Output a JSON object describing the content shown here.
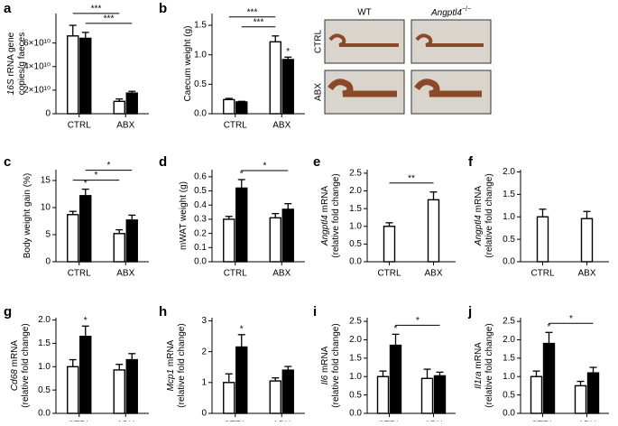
{
  "chart_data": [
    {
      "type": "bar",
      "panel": "a",
      "ylabel": [
        [
          {
            "t": "16S",
            "i": true
          },
          {
            "t": " rRNA gene"
          }
        ],
        [
          {
            "t": "copies/g faeces"
          }
        ]
      ],
      "categories": [
        "CTRL",
        "ABX"
      ],
      "series": [
        {
          "color": "#ffffff",
          "values": [
            66000000000,
            10500000000
          ],
          "errors": [
            9000000000,
            2000000000
          ]
        },
        {
          "color": "#000000",
          "values": [
            64000000000,
            17500000000
          ],
          "errors": [
            5000000000,
            1500000000
          ]
        }
      ],
      "ylim": [
        0,
        85000000000
      ],
      "yticks": [
        0,
        {
          "value": 20000000000,
          "label": "2×10¹⁰"
        },
        {
          "value": 40000000000,
          "label": "4×10¹⁰"
        },
        {
          "value": 60000000000,
          "label": "6×10¹⁰"
        }
      ],
      "annotations": [
        {
          "text": "***",
          "from": [
            1,
            0
          ],
          "to": [
            1,
            1
          ]
        },
        {
          "text": "***",
          "from": [
            0,
            0
          ],
          "to": [
            0,
            1
          ]
        }
      ]
    },
    {
      "type": "bar",
      "panel": "b",
      "ylabel": [
        [
          {
            "t": "Caecum weight (g)"
          }
        ]
      ],
      "categories": [
        "CTRL",
        "ABX"
      ],
      "series": [
        {
          "color": "#ffffff",
          "values": [
            0.24,
            1.22
          ],
          "errors": [
            0.02,
            0.1
          ]
        },
        {
          "color": "#000000",
          "values": [
            0.2,
            0.92
          ],
          "errors": [
            0.01,
            0.04
          ]
        }
      ],
      "ylim": [
        0,
        1.7
      ],
      "yticks": [
        {
          "value": 0,
          "label": "0.0"
        },
        0.5,
        {
          "value": 1,
          "label": "1.0"
        },
        1.5
      ],
      "annotations": [
        {
          "text": "*",
          "at": [
            1,
            1
          ]
        },
        {
          "text": "***",
          "from": [
            1,
            0
          ],
          "to": [
            0,
            1
          ]
        },
        {
          "text": "***",
          "from": [
            0,
            0
          ],
          "to": [
            0,
            1
          ]
        }
      ]
    },
    {
      "type": "bar",
      "panel": "c",
      "ylabel": [
        [
          {
            "t": "Body weight gain (%)"
          }
        ]
      ],
      "categories": [
        "CTRL",
        "ABX"
      ],
      "series": [
        {
          "color": "#ffffff",
          "values": [
            8.7,
            5.2
          ],
          "errors": [
            0.6,
            0.7
          ]
        },
        {
          "color": "#000000",
          "values": [
            12.2,
            7.7
          ],
          "errors": [
            1.2,
            0.9
          ]
        }
      ],
      "ylim": [
        0,
        17
      ],
      "yticks": [
        0,
        5,
        10,
        15
      ],
      "annotations": [
        {
          "text": "*",
          "at": [
            1,
            0
          ]
        },
        {
          "text": "*",
          "from": [
            0,
            0
          ],
          "to": [
            0,
            1
          ]
        },
        {
          "text": "*",
          "from": [
            1,
            0
          ],
          "to": [
            1,
            1
          ]
        }
      ]
    },
    {
      "type": "bar",
      "panel": "d",
      "ylabel": [
        [
          {
            "t": "mWAT weight (g)"
          }
        ]
      ],
      "categories": [
        "CTRL",
        "ABX"
      ],
      "series": [
        {
          "color": "#ffffff",
          "values": [
            0.3,
            0.31
          ],
          "errors": [
            0.02,
            0.03
          ]
        },
        {
          "color": "#000000",
          "values": [
            0.52,
            0.37
          ],
          "errors": [
            0.06,
            0.04
          ]
        }
      ],
      "ylim": [
        0,
        0.65
      ],
      "yticks": [
        {
          "value": 0,
          "label": "0.0"
        },
        0.1,
        0.2,
        0.3,
        0.4,
        0.5,
        0.6
      ],
      "annotations": [
        {
          "text": "*",
          "at": [
            1,
            0
          ]
        },
        {
          "text": "*",
          "from": [
            1,
            0
          ],
          "to": [
            1,
            1
          ]
        }
      ]
    },
    {
      "type": "bar",
      "panel": "e",
      "ylabel": [
        [
          {
            "t": "Angptl4",
            "i": true
          },
          {
            "t": " mRNA"
          }
        ],
        [
          {
            "t": "(relative fold change)"
          }
        ]
      ],
      "categories": [
        "CTRL",
        "ABX"
      ],
      "series": [
        {
          "color": "#ffffff",
          "values": [
            1.0,
            1.75
          ],
          "errors": [
            0.1,
            0.22
          ]
        }
      ],
      "ylim": [
        0,
        2.6
      ],
      "yticks": [
        {
          "value": 0,
          "label": "0.0"
        },
        0.5,
        {
          "value": 1,
          "label": "1.0"
        },
        1.5,
        {
          "value": 2,
          "label": "2.0"
        },
        2.5
      ],
      "annotations": [
        {
          "text": "**",
          "from": [
            0,
            0
          ],
          "to": [
            0,
            1
          ]
        }
      ]
    },
    {
      "type": "bar",
      "panel": "f",
      "ylabel": [
        [
          {
            "t": "Angptl4",
            "i": true
          },
          {
            "t": " mRNA"
          }
        ],
        [
          {
            "t": "(relative fold change)"
          }
        ]
      ],
      "categories": [
        "CTRL",
        "ABX"
      ],
      "series": [
        {
          "color": "#ffffff",
          "values": [
            1.0,
            0.96
          ],
          "errors": [
            0.17,
            0.16
          ]
        }
      ],
      "ylim": [
        0,
        2.05
      ],
      "yticks": [
        {
          "value": 0,
          "label": "0.0"
        },
        0.5,
        {
          "value": 1,
          "label": "1.0"
        },
        1.5,
        {
          "value": 2,
          "label": "2.0"
        }
      ],
      "annotations": []
    },
    {
      "type": "bar",
      "panel": "g",
      "ylabel": [
        [
          {
            "t": "Cd68",
            "i": true
          },
          {
            "t": " mRNA"
          }
        ],
        [
          {
            "t": "(relative fold change)"
          }
        ]
      ],
      "categories": [
        "CTRL",
        "ABX"
      ],
      "series": [
        {
          "color": "#ffffff",
          "values": [
            1.0,
            0.93
          ],
          "errors": [
            0.15,
            0.12
          ]
        },
        {
          "color": "#000000",
          "values": [
            1.65,
            1.15
          ],
          "errors": [
            0.22,
            0.13
          ]
        }
      ],
      "ylim": [
        0,
        2.05
      ],
      "yticks": [
        {
          "value": 0,
          "label": "0.0"
        },
        0.5,
        {
          "value": 1,
          "label": "1.0"
        },
        1.5,
        {
          "value": 2,
          "label": "2.0"
        }
      ],
      "annotations": [
        {
          "text": "*",
          "at": [
            1,
            0
          ]
        }
      ]
    },
    {
      "type": "bar",
      "panel": "h",
      "ylabel": [
        [
          {
            "t": "Mcp1",
            "i": true
          },
          {
            "t": " mRNA"
          }
        ],
        [
          {
            "t": "(relative fold change)"
          }
        ]
      ],
      "categories": [
        "CTRL",
        "ABX"
      ],
      "series": [
        {
          "color": "#ffffff",
          "values": [
            1.0,
            1.05
          ],
          "errors": [
            0.28,
            0.1
          ]
        },
        {
          "color": "#000000",
          "values": [
            2.15,
            1.4
          ],
          "errors": [
            0.4,
            0.12
          ]
        }
      ],
      "ylim": [
        0,
        3.1
      ],
      "yticks": [
        0,
        1,
        2,
        3
      ],
      "annotations": [
        {
          "text": "*",
          "at": [
            1,
            0
          ]
        }
      ]
    },
    {
      "type": "bar",
      "panel": "i",
      "ylabel": [
        [
          {
            "t": "Il6",
            "i": true
          },
          {
            "t": " mRNA"
          }
        ],
        [
          {
            "t": "(relative fold change)"
          }
        ]
      ],
      "categories": [
        "CTRL",
        "ABX"
      ],
      "series": [
        {
          "color": "#ffffff",
          "values": [
            1.0,
            0.95
          ],
          "errors": [
            0.15,
            0.25
          ]
        },
        {
          "color": "#000000",
          "values": [
            1.85,
            1.02
          ],
          "errors": [
            0.3,
            0.1
          ]
        }
      ],
      "ylim": [
        0,
        2.6
      ],
      "yticks": [
        {
          "value": 0,
          "label": "0.0"
        },
        0.5,
        {
          "value": 1,
          "label": "1.0"
        },
        1.5,
        {
          "value": 2,
          "label": "2.0"
        },
        2.5
      ],
      "annotations": [
        {
          "text": "*",
          "at": [
            1,
            0
          ]
        },
        {
          "text": "*",
          "from": [
            1,
            0
          ],
          "to": [
            1,
            1
          ]
        }
      ]
    },
    {
      "type": "bar",
      "panel": "j",
      "ylabel": [
        [
          {
            "t": "Il1ra",
            "i": true
          },
          {
            "t": " mRNA"
          }
        ],
        [
          {
            "t": "(relative fold change)"
          }
        ]
      ],
      "categories": [
        "CTRL",
        "ABX"
      ],
      "series": [
        {
          "color": "#ffffff",
          "values": [
            1.0,
            0.75
          ],
          "errors": [
            0.15,
            0.12
          ]
        },
        {
          "color": "#000000",
          "values": [
            1.9,
            1.1
          ],
          "errors": [
            0.3,
            0.15
          ]
        }
      ],
      "ylim": [
        0,
        2.6
      ],
      "yticks": [
        {
          "value": 0,
          "label": "0.0"
        },
        0.5,
        {
          "value": 1,
          "label": "1.0"
        },
        1.5,
        {
          "value": 2,
          "label": "2.0"
        },
        2.5
      ],
      "annotations": [
        {
          "text": "*",
          "at": [
            1,
            0
          ]
        },
        {
          "text": "*",
          "from": [
            1,
            0
          ],
          "to": [
            1,
            1
          ]
        }
      ]
    }
  ],
  "photo": {
    "columns": [
      {
        "t": "WT"
      },
      {
        "t": "Angptl4",
        "i": true,
        "sup": "−/−"
      }
    ],
    "rows": [
      "CTRL",
      "ABX"
    ]
  }
}
